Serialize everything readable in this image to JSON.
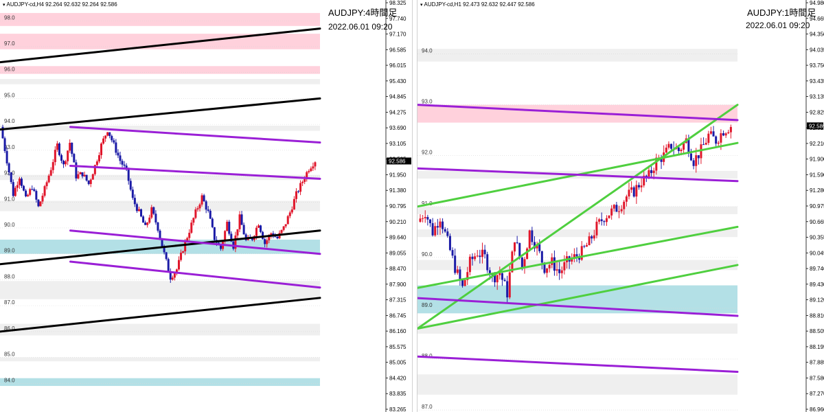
{
  "charts": [
    {
      "id": "h4",
      "info": "AUDJPY-cd,H4  92.264 92.632 92.264 92.586",
      "title": "AUDJPY:4時間足",
      "timestamp": "2022.06.01 09:20",
      "axis_ticks": [
        "98.325",
        "97.740",
        "97.170",
        "96.585",
        "96.015",
        "95.430",
        "94.845",
        "94.275",
        "93.690",
        "93.105",
        "92.535",
        "91.950",
        "91.380",
        "90.795",
        "90.210",
        "89.640",
        "89.055",
        "88.470",
        "87.900",
        "87.315",
        "86.745",
        "86.160",
        "85.575",
        "85.005",
        "84.420",
        "83.835",
        "83.265"
      ],
      "current_price": "92.586",
      "zone_labels": [
        "98.0",
        "97.0",
        "96.0",
        "95.0",
        "94.0",
        "93.0",
        "92.0",
        "91.0",
        "90.0",
        "89.0",
        "88.0",
        "87.0",
        "86.0",
        "85.0",
        "84.0"
      ]
    },
    {
      "id": "h1",
      "info": "AUDJPY-cd,H1  92.473 92.632 92.447 92.586",
      "title": "AUDJPY:1時間足",
      "timestamp": "2022.06.01 09:20",
      "axis_ticks": [
        "94.980",
        "94.665",
        "94.350",
        "94.035",
        "93.750",
        "93.435",
        "93.135",
        "92.825",
        "92.515",
        "92.210",
        "91.900",
        "91.590",
        "91.280",
        "90.975",
        "90.665",
        "90.355",
        "90.045",
        "89.740",
        "89.430",
        "89.120",
        "88.810",
        "88.505",
        "88.195",
        "87.885",
        "87.580",
        "87.270",
        "86.960"
      ],
      "current_price": "92.586",
      "zone_labels": [
        "94.0",
        "93.0",
        "92.0",
        "91.0",
        "90.0",
        "89.0",
        "88.0",
        "87.0"
      ]
    }
  ],
  "chart_data": [
    {
      "type": "candlestick",
      "timeframe": "H4",
      "ylim": [
        83.265,
        98.325
      ],
      "current": 92.586,
      "candles_close_path": [
        93.9,
        92.6,
        91.3,
        92.0,
        91.1,
        91.6,
        90.8,
        91.5,
        92.3,
        93.2,
        92.4,
        93.3,
        92.0,
        92.1,
        91.7,
        92.4,
        93.2,
        93.8,
        93.2,
        92.6,
        92.2,
        91.1,
        90.6,
        90.0,
        90.7,
        90.0,
        89.0,
        88.1,
        88.4,
        89.2,
        89.9,
        90.6,
        91.2,
        90.6,
        89.6,
        89.2,
        90.2,
        89.3,
        90.4,
        89.5,
        89.6,
        90.2,
        89.4,
        89.8,
        89.6,
        90.0,
        90.6,
        91.3,
        91.8,
        92.3,
        92.6
      ],
      "horizontal_zones": [
        {
          "from": 97.8,
          "to": 98.3,
          "color": "pink"
        },
        {
          "from": 96.9,
          "to": 97.5,
          "color": "pink"
        },
        {
          "from": 95.95,
          "to": 96.25,
          "color": "pink"
        },
        {
          "from": 95.55,
          "to": 95.75,
          "color": "gray"
        },
        {
          "from": 93.75,
          "to": 93.95,
          "color": "gray"
        },
        {
          "from": 91.85,
          "to": 92.05,
          "color": "gray"
        },
        {
          "from": 90.65,
          "to": 91.05,
          "color": "gray"
        },
        {
          "from": 89.0,
          "to": 89.55,
          "color": "lightblue"
        },
        {
          "from": 87.25,
          "to": 87.95,
          "color": "gray"
        },
        {
          "from": 85.85,
          "to": 86.3,
          "color": "gray"
        },
        {
          "from": 84.85,
          "to": 85.0,
          "color": "gray"
        },
        {
          "from": 83.9,
          "to": 84.2,
          "color": "lightblue"
        }
      ],
      "trendlines": [
        {
          "color": "black",
          "from": [
            0,
            96.4
          ],
          "to": [
            1,
            97.7
          ]
        },
        {
          "color": "black",
          "from": [
            0,
            93.8
          ],
          "to": [
            1,
            95.0
          ]
        },
        {
          "color": "black",
          "from": [
            0,
            88.6
          ],
          "to": [
            1,
            89.9
          ]
        },
        {
          "color": "black",
          "from": [
            0,
            86.0
          ],
          "to": [
            1,
            87.3
          ]
        },
        {
          "color": "purple",
          "from": [
            0.22,
            93.9
          ],
          "to": [
            1,
            93.3
          ]
        },
        {
          "color": "purple",
          "from": [
            0.22,
            92.4
          ],
          "to": [
            1,
            91.9
          ]
        },
        {
          "color": "purple",
          "from": [
            0.22,
            89.9
          ],
          "to": [
            1,
            89.0
          ]
        },
        {
          "color": "purple",
          "from": [
            0.22,
            88.7
          ],
          "to": [
            1,
            87.7
          ]
        }
      ]
    },
    {
      "type": "candlestick",
      "timeframe": "H1",
      "ylim": [
        86.96,
        94.98
      ],
      "current": 92.586,
      "candles_close_path": [
        90.7,
        90.9,
        90.5,
        90.8,
        90.3,
        89.8,
        89.4,
        89.9,
        90.1,
        90.0,
        89.6,
        89.7,
        89.3,
        90.4,
        89.8,
        90.5,
        90.2,
        89.8,
        89.9,
        89.7,
        89.9,
        90.0,
        90.1,
        90.3,
        90.6,
        90.8,
        90.9,
        91.0,
        91.2,
        91.3,
        91.5,
        91.6,
        91.9,
        92.0,
        92.2,
        92.1,
        92.3,
        91.9,
        92.1,
        92.4,
        92.3,
        92.5,
        92.586
      ],
      "horizontal_zones": [
        {
          "from": 93.85,
          "to": 94.1,
          "color": "gray"
        },
        {
          "from": 92.65,
          "to": 93.0,
          "color": "pink"
        },
        {
          "from": 91.55,
          "to": 91.7,
          "color": "gray"
        },
        {
          "from": 90.85,
          "to": 91.0,
          "color": "gray"
        },
        {
          "from": 90.4,
          "to": 90.55,
          "color": "gray"
        },
        {
          "from": 89.75,
          "to": 89.95,
          "color": "gray"
        },
        {
          "from": 88.9,
          "to": 89.45,
          "color": "lightblue"
        },
        {
          "from": 88.5,
          "to": 88.7,
          "color": "gray"
        },
        {
          "from": 87.3,
          "to": 87.7,
          "color": "gray"
        }
      ],
      "trendlines": [
        {
          "color": "green",
          "from": [
            0,
            88.6
          ],
          "to": [
            1,
            93.0
          ]
        },
        {
          "color": "green",
          "from": [
            0,
            89.4
          ],
          "to": [
            1,
            90.6
          ]
        },
        {
          "color": "green",
          "from": [
            0,
            88.6
          ],
          "to": [
            1,
            89.85
          ]
        },
        {
          "color": "green",
          "from": [
            0,
            91.0
          ],
          "to": [
            1,
            92.25
          ]
        },
        {
          "color": "purple",
          "from": [
            0,
            93.0
          ],
          "to": [
            1,
            92.7
          ]
        },
        {
          "color": "purple",
          "from": [
            0,
            91.75
          ],
          "to": [
            1,
            91.5
          ]
        },
        {
          "color": "purple",
          "from": [
            0,
            89.2
          ],
          "to": [
            1,
            88.85
          ]
        },
        {
          "color": "purple",
          "from": [
            0,
            88.05
          ],
          "to": [
            1,
            87.75
          ]
        }
      ]
    }
  ]
}
